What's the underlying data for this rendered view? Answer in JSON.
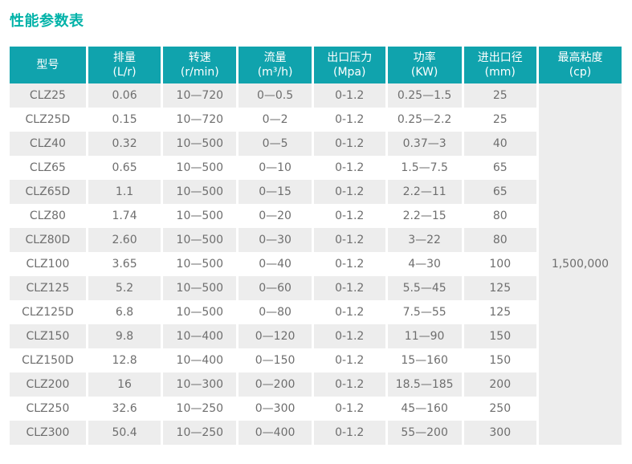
{
  "page": {
    "title": "性能参数表"
  },
  "colors": {
    "header_bg": "#10a3ad",
    "title": "#00b2a8",
    "row_alt_bg": "#ededed",
    "body_text": "#6e6e6e",
    "header_text": "#ffffff"
  },
  "chart_data": {
    "type": "table",
    "title": "性能参数表",
    "columns": [
      {
        "label": "型号",
        "unit": ""
      },
      {
        "label": "排量",
        "unit": "(L/r)"
      },
      {
        "label": "转速",
        "unit": "(r/min)"
      },
      {
        "label": "流量",
        "unit": "(m³/h)"
      },
      {
        "label": "出口压力",
        "unit": "(Mpa)"
      },
      {
        "label": "功率",
        "unit": "(KW)"
      },
      {
        "label": "进出口径",
        "unit": "(mm)"
      },
      {
        "label": "最高粘度",
        "unit": "(cp)"
      }
    ],
    "rows": [
      [
        "CLZ25",
        "0.06",
        "10—720",
        "0—0.5",
        "0-1.2",
        "0.25—1.5",
        "25"
      ],
      [
        "CLZ25D",
        "0.15",
        "10—720",
        "0—2",
        "0-1.2",
        "0.25—2.2",
        "25"
      ],
      [
        "CLZ40",
        "0.32",
        "10—500",
        "0—5",
        "0-1.2",
        "0.37—3",
        "40"
      ],
      [
        "CLZ65",
        "0.65",
        "10—500",
        "0—10",
        "0-1.2",
        "1.5—7.5",
        "65"
      ],
      [
        "CLZ65D",
        "1.1",
        "10—500",
        "0—15",
        "0-1.2",
        "2.2—11",
        "65"
      ],
      [
        "CLZ80",
        "1.74",
        "10—500",
        "0—20",
        "0-1.2",
        "2.2—15",
        "80"
      ],
      [
        "CLZ80D",
        "2.60",
        "10—500",
        "0—30",
        "0-1.2",
        "3—22",
        "80"
      ],
      [
        "CLZ100",
        "3.65",
        "10—500",
        "0—40",
        "0-1.2",
        "4—30",
        "100"
      ],
      [
        "CLZ125",
        "5.2",
        "10—500",
        "0—60",
        "0-1.2",
        "5.5—45",
        "125"
      ],
      [
        "CLZ125D",
        "6.8",
        "10—500",
        "0—80",
        "0-1.2",
        "7.5—55",
        "125"
      ],
      [
        "CLZ150",
        "9.8",
        "10—400",
        "0—120",
        "0-1.2",
        "11—90",
        "150"
      ],
      [
        "CLZ150D",
        "12.8",
        "10—400",
        "0—150",
        "0-1.2",
        "15—160",
        "150"
      ],
      [
        "CLZ200",
        "16",
        "10—300",
        "0—200",
        "0-1.2",
        "18.5—185",
        "200"
      ],
      [
        "CLZ250",
        "32.6",
        "10—250",
        "0—300",
        "0-1.2",
        "45—160",
        "250"
      ],
      [
        "CLZ300",
        "50.4",
        "10—250",
        "0—400",
        "0-1.2",
        "55—200",
        "300"
      ]
    ],
    "merged_last_column": {
      "column_label": "最高粘度 (cp)",
      "value": "1,500,000",
      "spans_all_rows": true
    },
    "layout_hints": {
      "striped_rows": "odd rows gray, even rows white",
      "column_gaps": "thin white vertical gutters between columns",
      "last_column_merged_cell": true
    }
  }
}
